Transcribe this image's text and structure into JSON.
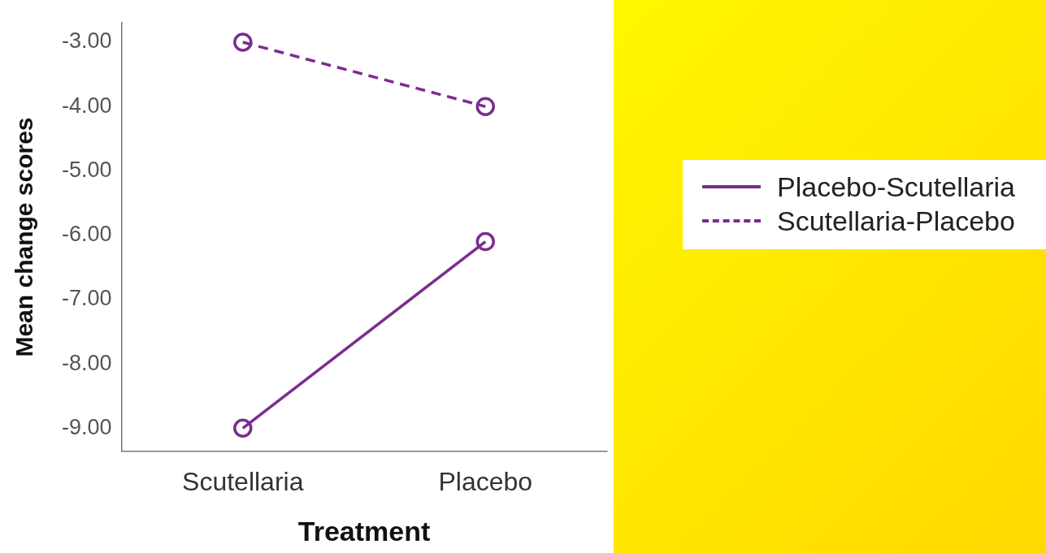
{
  "chart_data": {
    "type": "line",
    "xlabel": "Treatment",
    "ylabel": "Mean change scores",
    "categories": [
      "Scutellaria",
      "Placebo"
    ],
    "series": [
      {
        "name": "Placebo-Scutellaria",
        "color": "#7b2d8e",
        "values": [
          -9.0,
          -6.1
        ],
        "line_style": "solid"
      },
      {
        "name": "Scutellaria-Placebo",
        "color": "#7b2d8e",
        "values": [
          -3.0,
          -4.0
        ],
        "line_style": "dashed"
      }
    ],
    "ylim": [
      -9.36,
      -2.7
    ],
    "yticks": [
      {
        "value": -9,
        "label": "-9.00"
      },
      {
        "value": -8,
        "label": "-8.00"
      },
      {
        "value": -7,
        "label": "-7.00"
      },
      {
        "value": -6,
        "label": "-6.00"
      },
      {
        "value": -5,
        "label": "-5.00"
      },
      {
        "value": -4,
        "label": "-4.00"
      },
      {
        "value": -3,
        "label": "-3.00"
      }
    ],
    "grid": false,
    "legend": "right",
    "marker": "circle"
  }
}
